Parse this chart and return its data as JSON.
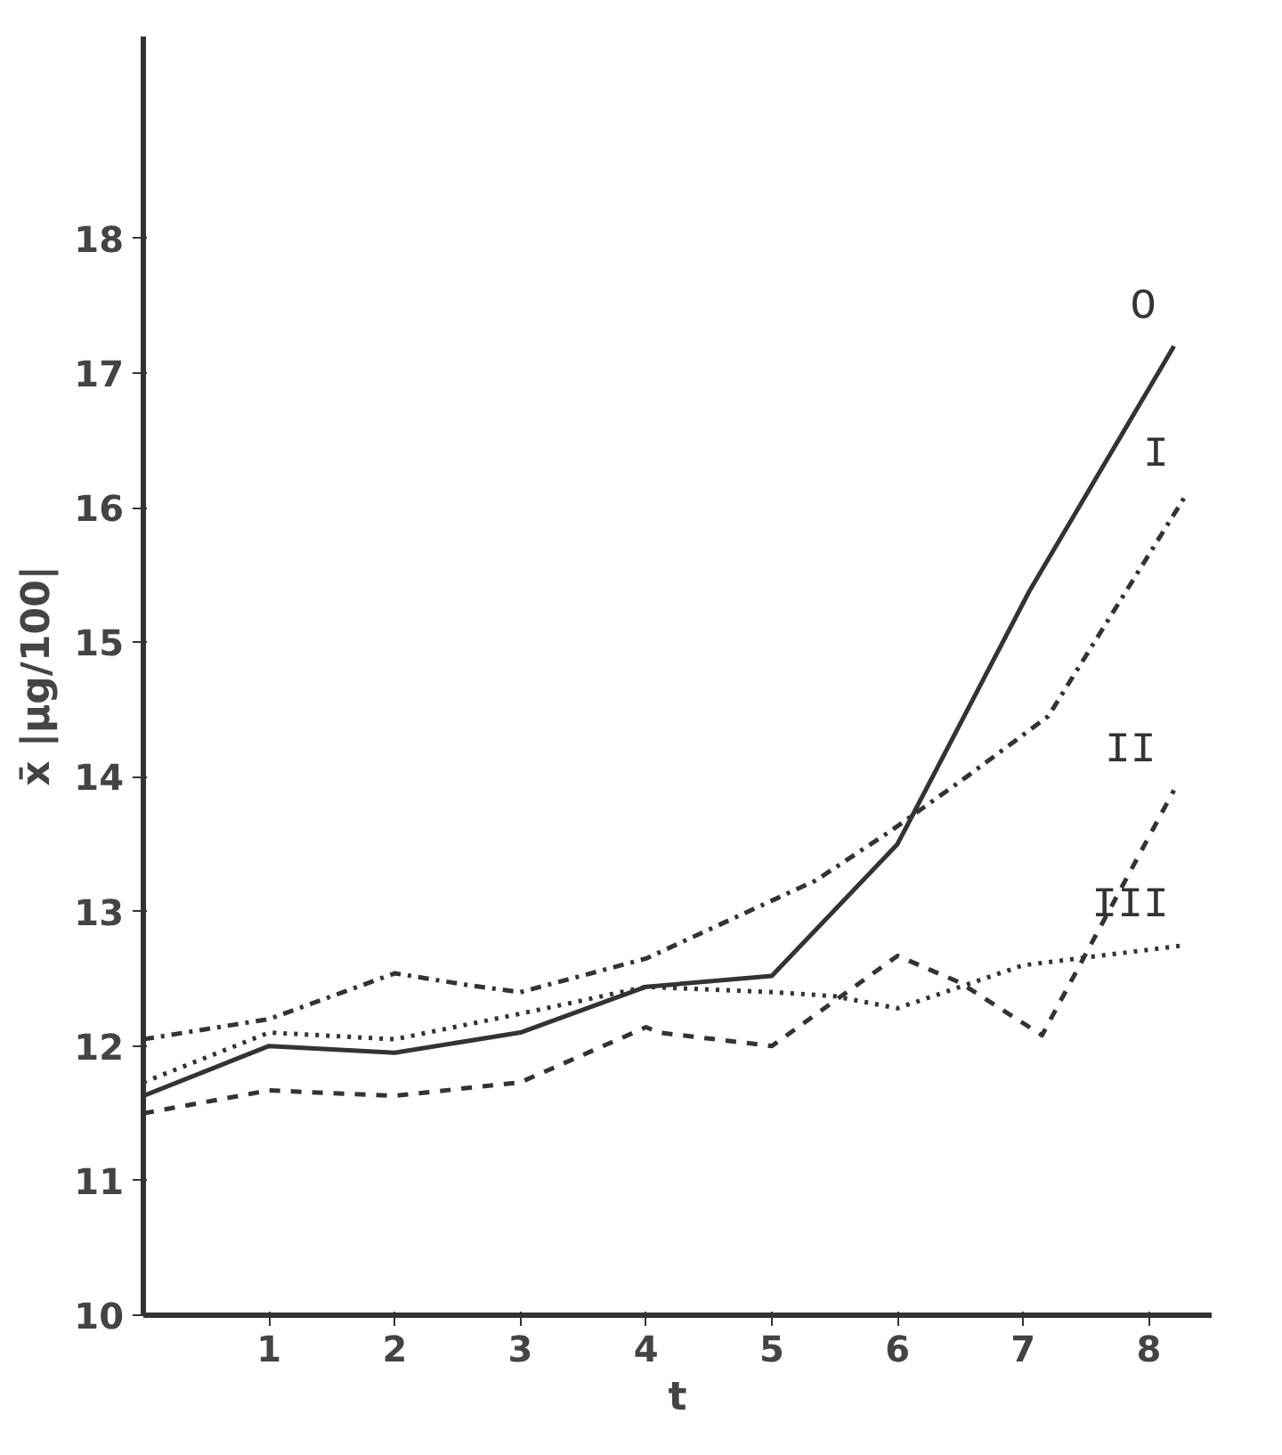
{
  "chart_data": {
    "type": "line",
    "xlabel": "t",
    "ylabel": "x̄ |µg/100|",
    "xlim": [
      0,
      8.5
    ],
    "ylim": [
      10,
      19.5
    ],
    "xticks": [
      1,
      2,
      3,
      4,
      5,
      6,
      7,
      8
    ],
    "yticks": [
      10,
      11,
      12,
      13,
      14,
      15,
      16,
      17,
      18
    ],
    "grid": false,
    "legend": false,
    "marker": "none",
    "series": [
      {
        "name": "O",
        "color": "#333333",
        "line_style": "solid",
        "x": [
          0,
          1,
          2,
          3,
          4,
          5,
          6,
          7.05,
          8.2
        ],
        "values": [
          11.63,
          12.0,
          11.95,
          12.1,
          12.44,
          12.52,
          13.5,
          15.38,
          17.2
        ]
      },
      {
        "name": "I",
        "color": "#333333",
        "line_style": "dashdot",
        "x": [
          0,
          1,
          2,
          2.6,
          3,
          4,
          5.35,
          5.95,
          6.55,
          7.2,
          8.3
        ],
        "values": [
          12.05,
          12.2,
          12.54,
          12.45,
          12.4,
          12.65,
          13.23,
          13.6,
          14.0,
          14.45,
          16.1
        ]
      },
      {
        "name": "II",
        "color": "#333333",
        "line_style": "dashed",
        "x": [
          0,
          1,
          2,
          3,
          4,
          4.1,
          5,
          6.0,
          6.5,
          7.15,
          8.2
        ],
        "values": [
          11.5,
          11.67,
          11.63,
          11.73,
          12.14,
          12.1,
          12.0,
          12.67,
          12.47,
          12.08,
          13.9
        ]
      },
      {
        "name": "III",
        "color": "#333333",
        "line_style": "dotted",
        "x": [
          0,
          1,
          2,
          3,
          4,
          5,
          5.5,
          6.0,
          6.5,
          7.0,
          8.3
        ],
        "values": [
          11.73,
          12.1,
          12.05,
          12.24,
          12.44,
          12.4,
          12.37,
          12.28,
          12.44,
          12.6,
          12.75
        ]
      }
    ]
  }
}
